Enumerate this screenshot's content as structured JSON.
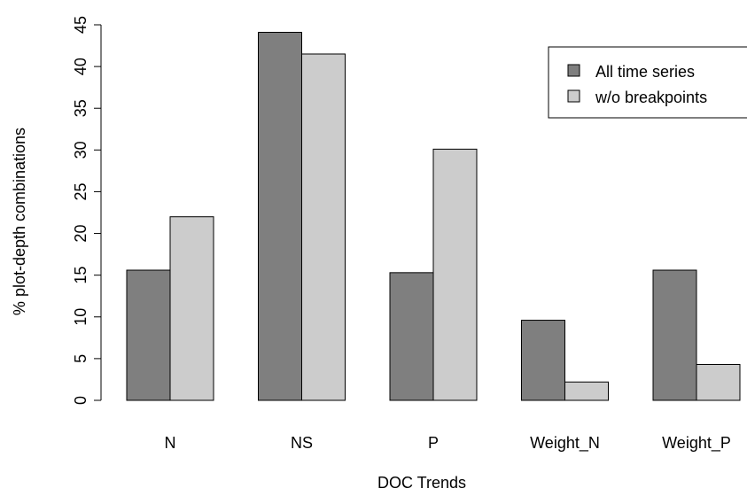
{
  "chart_data": {
    "type": "bar",
    "title": "",
    "xlabel": "DOC Trends",
    "ylabel": "% plot-depth combinations",
    "categories": [
      "N",
      "NS",
      "P",
      "Weight_N",
      "Weight_P"
    ],
    "series": [
      {
        "name": "All time series",
        "values": [
          15.6,
          44.1,
          15.3,
          9.6,
          15.6
        ],
        "color": "#7f7f7f"
      },
      {
        "name": "w/o breakpoints",
        "values": [
          22.0,
          41.5,
          30.1,
          2.2,
          4.3
        ],
        "color": "#cccccc"
      }
    ],
    "ylim": [
      0,
      45
    ],
    "yticks": [
      "0",
      "5",
      "10",
      "15",
      "20",
      "25",
      "30",
      "35",
      "40",
      "45"
    ],
    "grid": false,
    "legend_position": "top-right"
  }
}
